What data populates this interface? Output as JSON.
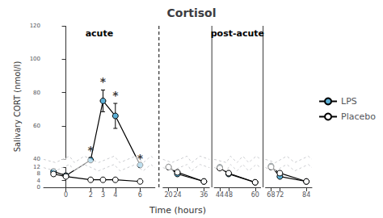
{
  "chart_data": {
    "type": "line",
    "title": "Cortisol",
    "xlabel": "Time (hours)",
    "ylabel": "Salivary CORT (nmol/l)",
    "ylim": [
      0,
      120
    ],
    "yticks": [
      0,
      4,
      8,
      12,
      40,
      60,
      80,
      100,
      120
    ],
    "grid": false,
    "legend": "right",
    "marker": "circle",
    "groups": [
      {
        "label": "acute",
        "panels": [
          {
            "x": [
              -1,
              0,
              2,
              3,
              4,
              6
            ],
            "xlim": [
              -1.8,
              7.2
            ],
            "xticks": [
              0,
              2,
              3,
              4,
              6
            ],
            "series": [
              {
                "name": "LPS",
                "color": "#5bafd6",
                "values": [
                  9.5,
                  7.0,
                  37.0,
                  75.0,
                  66.0,
                  20.0
                ],
                "errors": [
                  1.5,
                  1.2,
                  4.0,
                  6.5,
                  7.5,
                  3.5
                ]
              },
              {
                "name": "Placebo",
                "color": "#ffffff",
                "values": [
                  8.0,
                  6.5,
                  4.5,
                  4.5,
                  4.5,
                  3.5
                ],
                "errors": [
                  1.2,
                  1.0,
                  0.5,
                  0.5,
                  0.5,
                  0.5
                ]
              }
            ],
            "annotations": [
              {
                "text": "*",
                "x": 2,
                "y": 42.0
              },
              {
                "text": "*",
                "x": 3,
                "y": 83.0
              },
              {
                "text": "*",
                "x": 4,
                "y": 75.0
              },
              {
                "text": "*",
                "x": 6,
                "y": 25.0
              }
            ]
          }
        ]
      },
      {
        "label": "post-acute",
        "panels": [
          {
            "x": [
              20,
              24,
              36
            ],
            "xlim": [
              17.5,
              38.5
            ],
            "xticks": [
              20,
              24,
              36
            ],
            "series": [
              {
                "name": "LPS",
                "color": "#5bafd6",
                "values": [
                  13.5,
                  8.0,
                  3.5
                ],
                "errors": [
                  1.5,
                  0.8,
                  0.4
                ]
              },
              {
                "name": "Placebo",
                "color": "#ffffff",
                "values": [
                  12.5,
                  9.0,
                  3.5
                ],
                "errors": [
                  1.2,
                  0.8,
                  0.4
                ]
              }
            ]
          },
          {
            "x": [
              44,
              48,
              60
            ],
            "xlim": [
              41.5,
              62.5
            ],
            "xticks": [
              44,
              48,
              60
            ],
            "series": [
              {
                "name": "LPS",
                "color": "#5bafd6",
                "values": [
                  12.5,
                  8.0,
                  3.0
                ],
                "errors": [
                  1.5,
                  0.8,
                  0.3
                ]
              },
              {
                "name": "Placebo",
                "color": "#ffffff",
                "values": [
                  11.5,
                  8.5,
                  3.0
                ],
                "errors": [
                  1.0,
                  0.8,
                  0.3
                ]
              }
            ]
          },
          {
            "x": [
              68,
              72,
              84
            ],
            "xlim": [
              65.5,
              86.5
            ],
            "xticks": [
              68,
              72,
              84
            ],
            "series": [
              {
                "name": "LPS",
                "color": "#5bafd6",
                "values": [
                  16.5,
                  6.5,
                  3.5
                ],
                "errors": [
                  2.0,
                  0.8,
                  0.4
                ]
              },
              {
                "name": "Placebo",
                "color": "#ffffff",
                "values": [
                  13.0,
                  8.5,
                  3.5
                ],
                "errors": [
                  1.5,
                  0.8,
                  0.4
                ]
              }
            ]
          }
        ]
      }
    ]
  }
}
